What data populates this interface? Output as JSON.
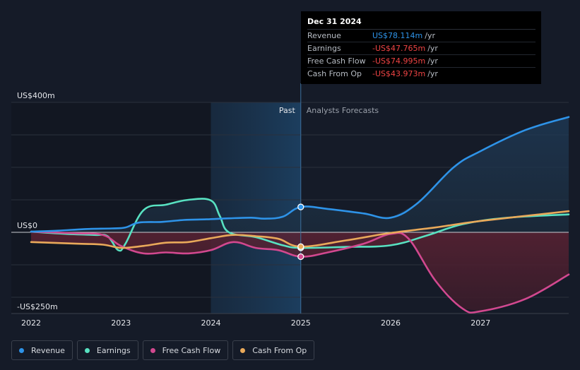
{
  "chart_data": {
    "type": "line",
    "title": "",
    "xlabel": "",
    "ylabel": "",
    "x_ticks": [
      "2022",
      "2023",
      "2024",
      "2025",
      "2026",
      "2027"
    ],
    "x_tick_values": [
      2022,
      2023,
      2024,
      2025,
      2026,
      2027
    ],
    "xlim": [
      2021.78,
      2027.98
    ],
    "y_ticks": [
      "US$400m",
      "US$0",
      "-US$250m"
    ],
    "y_tick_values": [
      400,
      0,
      -250
    ],
    "ylim": [
      -250,
      400
    ],
    "past_label": "Past",
    "forecast_label": "Analysts Forecasts",
    "past_region": [
      2024.0,
      2025.0
    ],
    "divider_x": 2025.0,
    "grid": true,
    "series": [
      {
        "name": "Revenue",
        "color": "#2e93e8",
        "points": [
          [
            2022.0,
            2
          ],
          [
            2022.3,
            5
          ],
          [
            2022.6,
            10
          ],
          [
            2022.9,
            12
          ],
          [
            2023.05,
            15
          ],
          [
            2023.2,
            30
          ],
          [
            2023.45,
            32
          ],
          [
            2023.7,
            38
          ],
          [
            2023.95,
            40
          ],
          [
            2024.2,
            43
          ],
          [
            2024.45,
            45
          ],
          [
            2024.6,
            42
          ],
          [
            2024.8,
            48
          ],
          [
            2025.0,
            78.1
          ],
          [
            2025.3,
            72
          ],
          [
            2025.7,
            58
          ],
          [
            2026.0,
            45
          ],
          [
            2026.3,
            90
          ],
          [
            2026.7,
            200
          ],
          [
            2027.0,
            250
          ],
          [
            2027.5,
            315
          ],
          [
            2027.98,
            355
          ]
        ]
      },
      {
        "name": "Earnings",
        "color": "#58e1c1",
        "points": [
          [
            2022.0,
            2
          ],
          [
            2022.4,
            -5
          ],
          [
            2022.7,
            -8
          ],
          [
            2022.85,
            -12
          ],
          [
            2022.97,
            -55
          ],
          [
            2023.05,
            -35
          ],
          [
            2023.25,
            68
          ],
          [
            2023.5,
            85
          ],
          [
            2023.75,
            100
          ],
          [
            2024.0,
            98
          ],
          [
            2024.1,
            50
          ],
          [
            2024.2,
            0
          ],
          [
            2024.5,
            -15
          ],
          [
            2024.8,
            -40
          ],
          [
            2025.0,
            -47.8
          ],
          [
            2025.5,
            -45
          ],
          [
            2026.0,
            -40
          ],
          [
            2026.4,
            -10
          ],
          [
            2026.8,
            25
          ],
          [
            2027.3,
            45
          ],
          [
            2027.98,
            55
          ]
        ]
      },
      {
        "name": "Free Cash Flow",
        "color": "#d2488f",
        "points": [
          [
            2022.0,
            2
          ],
          [
            2022.5,
            -3
          ],
          [
            2022.8,
            -8
          ],
          [
            2023.0,
            -42
          ],
          [
            2023.25,
            -65
          ],
          [
            2023.5,
            -62
          ],
          [
            2023.75,
            -65
          ],
          [
            2024.0,
            -55
          ],
          [
            2024.25,
            -30
          ],
          [
            2024.5,
            -48
          ],
          [
            2024.75,
            -55
          ],
          [
            2025.0,
            -75
          ],
          [
            2025.3,
            -62
          ],
          [
            2025.7,
            -35
          ],
          [
            2026.0,
            -5
          ],
          [
            2026.2,
            -20
          ],
          [
            2026.5,
            -150
          ],
          [
            2026.8,
            -235
          ],
          [
            2027.0,
            -243
          ],
          [
            2027.5,
            -205
          ],
          [
            2027.98,
            -130
          ]
        ]
      },
      {
        "name": "Cash From Op",
        "color": "#e9a95a",
        "points": [
          [
            2022.0,
            -30
          ],
          [
            2022.5,
            -35
          ],
          [
            2022.8,
            -38
          ],
          [
            2023.0,
            -48
          ],
          [
            2023.25,
            -42
          ],
          [
            2023.5,
            -32
          ],
          [
            2023.75,
            -30
          ],
          [
            2024.0,
            -18
          ],
          [
            2024.25,
            -8
          ],
          [
            2024.5,
            -12
          ],
          [
            2024.75,
            -20
          ],
          [
            2025.0,
            -44
          ],
          [
            2025.5,
            -25
          ],
          [
            2026.0,
            -2
          ],
          [
            2026.5,
            15
          ],
          [
            2027.0,
            35
          ],
          [
            2027.98,
            65
          ]
        ]
      }
    ]
  },
  "tooltip": {
    "date": "Dec 31 2024",
    "rows": [
      {
        "label": "Revenue",
        "value": "US$78.114m",
        "unit": "/yr",
        "color": "#2e93e8"
      },
      {
        "label": "Earnings",
        "value": "-US$47.765m",
        "unit": "/yr",
        "color": "#ef4444"
      },
      {
        "label": "Free Cash Flow",
        "value": "-US$74.995m",
        "unit": "/yr",
        "color": "#ef4444"
      },
      {
        "label": "Cash From Op",
        "value": "-US$43.973m",
        "unit": "/yr",
        "color": "#ef4444"
      }
    ]
  },
  "legend": [
    {
      "label": "Revenue",
      "color": "#2e93e8"
    },
    {
      "label": "Earnings",
      "color": "#58e1c1"
    },
    {
      "label": "Free Cash Flow",
      "color": "#d2488f"
    },
    {
      "label": "Cash From Op",
      "color": "#e9a95a"
    }
  ]
}
